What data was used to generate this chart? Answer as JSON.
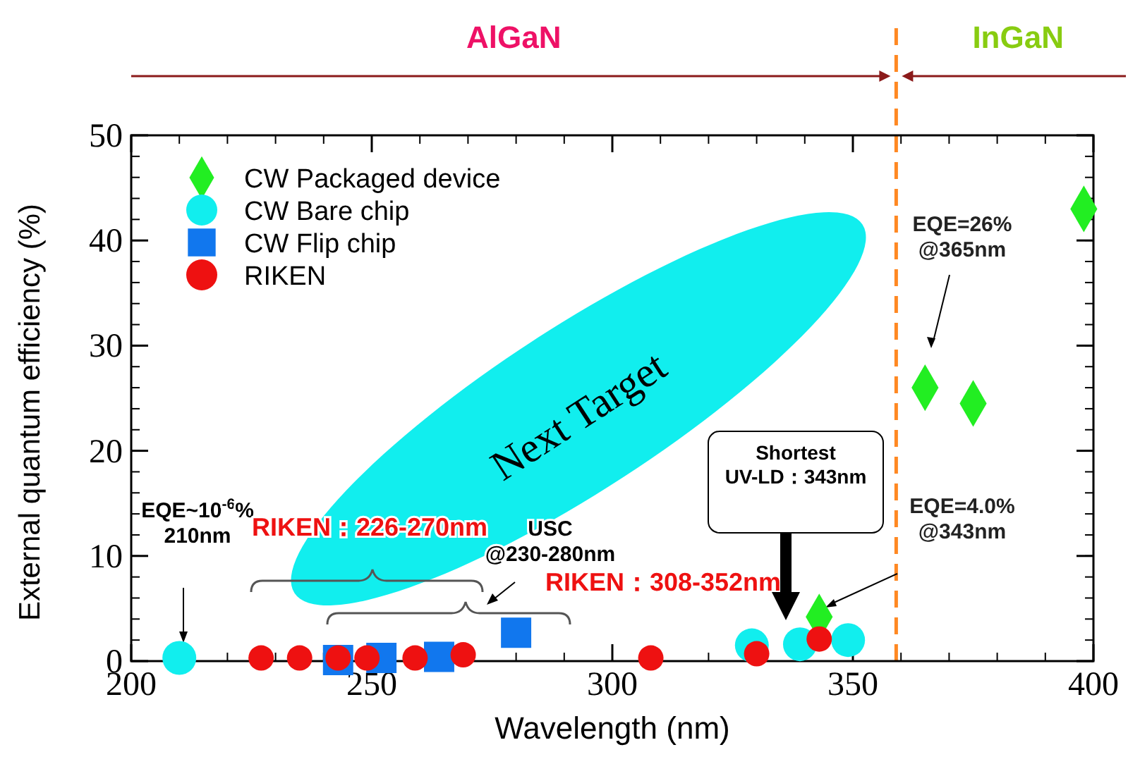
{
  "chart_data": {
    "type": "scatter",
    "xlabel": "Wavelength (nm)",
    "ylabel": "External quantum efficiency (%)",
    "xlim": [
      200,
      400
    ],
    "xticks": [
      200,
      250,
      300,
      350,
      400
    ],
    "ylim": [
      0,
      50
    ],
    "yticks": [
      0,
      10,
      20,
      30,
      40,
      50
    ],
    "grid": false,
    "legend": "top left",
    "series": [
      {
        "name": "CW Packaged device",
        "color": "#22ee22",
        "marker": "diamond",
        "x": [
          343,
          365,
          375,
          398
        ],
        "values": [
          4.2,
          26,
          24.5,
          43
        ]
      },
      {
        "name": "CW Bare chip",
        "color": "#11eeee",
        "marker": "circle",
        "x": [
          210,
          329,
          339,
          349
        ],
        "values": [
          0.3,
          1.5,
          1.6,
          2
        ]
      },
      {
        "name": "CW Flip chip",
        "color": "#1177ee",
        "marker": "square",
        "x": [
          243,
          252,
          264,
          280
        ],
        "values": [
          0.1,
          0.3,
          0.4,
          2.7
        ]
      },
      {
        "name": "RIKEN",
        "color": "#ee1111",
        "marker": "circle",
        "x": [
          227,
          235,
          243,
          249,
          259,
          269,
          308,
          330,
          343
        ],
        "values": [
          0.3,
          0.3,
          0.3,
          0.3,
          0.3,
          0.6,
          0.3,
          0.7,
          2.1
        ]
      }
    ],
    "ref_lines": [
      {
        "axis": "x",
        "value": 359,
        "color": "#ff8822",
        "line_style": "dashed"
      }
    ],
    "annotations": [
      "AlGaN",
      "InGaN",
      "Next Target",
      "EQE~10$^{-6}$% 210nm",
      "RIKEN：226-270nm",
      "USC @230-280nm",
      "RIKEN：308-352nm",
      "Shortest UV-LD：343nm",
      "EQE=26% @365nm",
      "EQE=4.0% @343nm"
    ]
  }
}
